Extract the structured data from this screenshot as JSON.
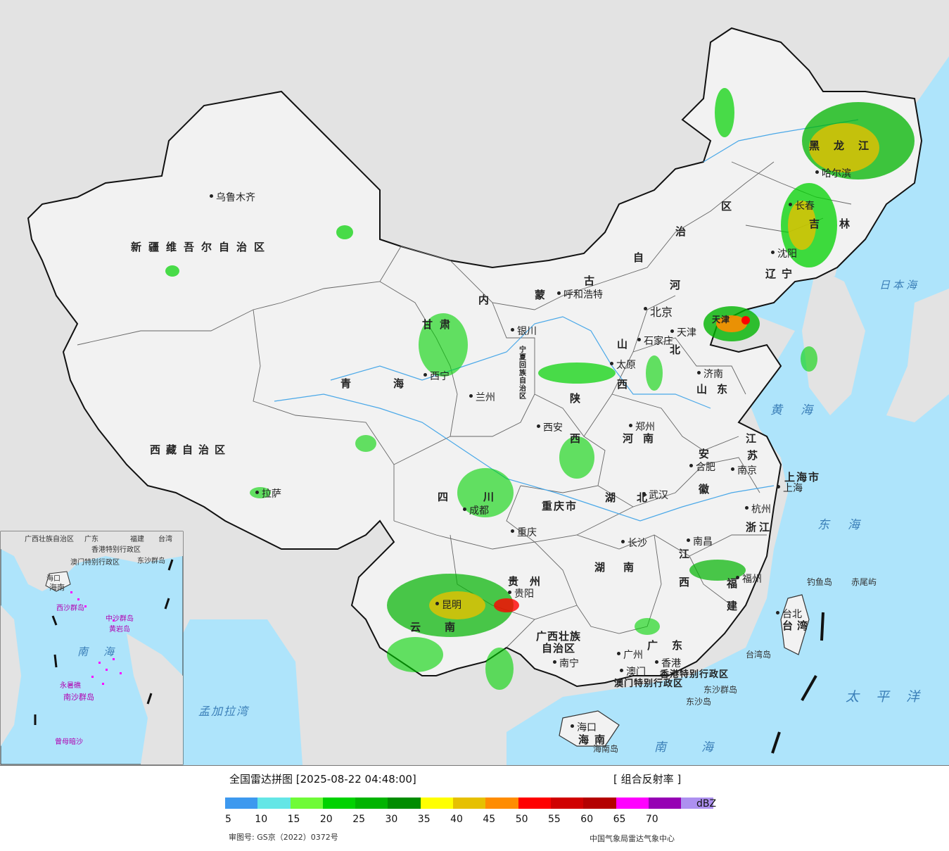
{
  "legend": {
    "title": "全国雷达拼图 [2025-08-22 04:48:00]",
    "product": "[ 组合反射率 ]",
    "unit": "dBZ",
    "scale": [
      {
        "value": "5",
        "color": "#3d99ef"
      },
      {
        "value": "10",
        "color": "#64e6e6"
      },
      {
        "value": "15",
        "color": "#6ffb37"
      },
      {
        "value": "20",
        "color": "#00d200"
      },
      {
        "value": "25",
        "color": "#00b400"
      },
      {
        "value": "30",
        "color": "#008c00"
      },
      {
        "value": "35",
        "color": "#ffff00"
      },
      {
        "value": "40",
        "color": "#e6c000"
      },
      {
        "value": "45",
        "color": "#ff8c00"
      },
      {
        "value": "50",
        "color": "#ff0000"
      },
      {
        "value": "55",
        "color": "#d00000"
      },
      {
        "value": "60",
        "color": "#b40000"
      },
      {
        "value": "65",
        "color": "#ff00ff"
      },
      {
        "value": "70",
        "color": "#9600b4"
      },
      {
        "value": "",
        "color": "#ad90f0"
      }
    ],
    "approval": "审图号: GS京（2022）0372号",
    "source": "中国气象局雷达气象中心"
  },
  "colors": {
    "ocean": "#aee4fb",
    "land_outside": "#e3e3e3",
    "china": "#f2f2f2",
    "border": "#111111",
    "sea_label": "#3b7fb8"
  },
  "provinces": {
    "xinjiang": "新疆维吾尔自治区",
    "xizang": "西藏自治区",
    "qinghai": "青海",
    "gansu": "甘肃",
    "neimenggu_1": "内",
    "neimenggu_2": "蒙",
    "neimenggu_3": "古",
    "neimenggu_4": "自",
    "neimenggu_5": "治",
    "neimenggu_6": "区",
    "heilongjiang": "黑龙江",
    "jilin": "吉林",
    "liaoning": "辽宁",
    "hebei_1": "河",
    "hebei_2": "北",
    "shanxi_1": "山",
    "shanxi_2": "西",
    "shandong": "山东",
    "henan": "河南",
    "shaanxi_1": "陕",
    "shaanxi_2": "西",
    "sichuan": "四川",
    "chongqing": "重庆市",
    "hubei": "湖北",
    "anhui_1": "安",
    "anhui_2": "徽",
    "jiangsu_1": "江",
    "jiangsu_2": "苏",
    "zhejiang": "浙江",
    "jiangxi_1": "江",
    "jiangxi_2": "西",
    "hunan": "湖南",
    "guizhou": "贵州",
    "yunnan": "云南",
    "guangxi_1": "广西壮族",
    "guangxi_2": "自治区",
    "guangdong": "广东",
    "fujian_1": "福",
    "fujian_2": "建",
    "hainan": "海南",
    "taiwan": "台湾",
    "shanghai": "上海市",
    "ningxia": "宁夏回族自治区",
    "tianjin": "天津",
    "hongkong": "香港特别行政区",
    "macau": "澳门特别行政区"
  },
  "cities": {
    "urumqi": "乌鲁木齐",
    "lhasa": "拉萨",
    "xining": "西宁",
    "lanzhou": "兰州",
    "yinchuan": "银川",
    "hohhot": "呼和浩特",
    "beijing": "北京",
    "tianjin": "天津",
    "shijiazhuang": "石家庄",
    "taiyuan": "太原",
    "jinan": "济南",
    "zhengzhou": "郑州",
    "xian": "西安",
    "chengdu": "成都",
    "chongqing": "重庆",
    "wuhan": "武汉",
    "hefei": "合肥",
    "nanjing": "南京",
    "shanghai": "上海",
    "hangzhou": "杭州",
    "nanchang": "南昌",
    "changsha": "长沙",
    "guiyang": "贵阳",
    "kunming": "昆明",
    "nanning": "南宁",
    "guangzhou": "广州",
    "hongkong": "香港",
    "macau": "澳门",
    "fuzhou": "福州",
    "taipei": "台北",
    "haikou": "海口",
    "harbin": "哈尔滨",
    "changchun": "长春",
    "shenyang": "沈阳"
  },
  "seas": {
    "japan_sea": "日本海",
    "yellow_sea": "黄海",
    "east_sea": "东海",
    "pacific": "太平洋",
    "south_sea": "南海",
    "bengal": "孟加拉湾"
  },
  "islands": {
    "diaoyu": "钓鱼岛",
    "chiwei": "赤尾屿",
    "taiwan_island": "台湾岛",
    "dongsha_islands": "东沙群岛",
    "dongsha_island": "东沙岛",
    "hainan_island": "海南岛"
  },
  "inset": {
    "south_sea": "南海",
    "xisha": "西沙群岛",
    "zhongsha": "中沙群岛",
    "nansha": "南沙群岛",
    "huangyan": "黄岩岛",
    "yongshu": "永暑礁",
    "zengmu": "曾母暗沙",
    "haikou": "海口",
    "hainan": "海南",
    "guangdong": "广东",
    "hongkong": "香港特别行政区",
    "macau": "澳门特别行政区",
    "dongsha": "东沙群岛",
    "taiwan": "台湾",
    "guangxi": "广西壮族自治区",
    "fujian": "福建"
  }
}
